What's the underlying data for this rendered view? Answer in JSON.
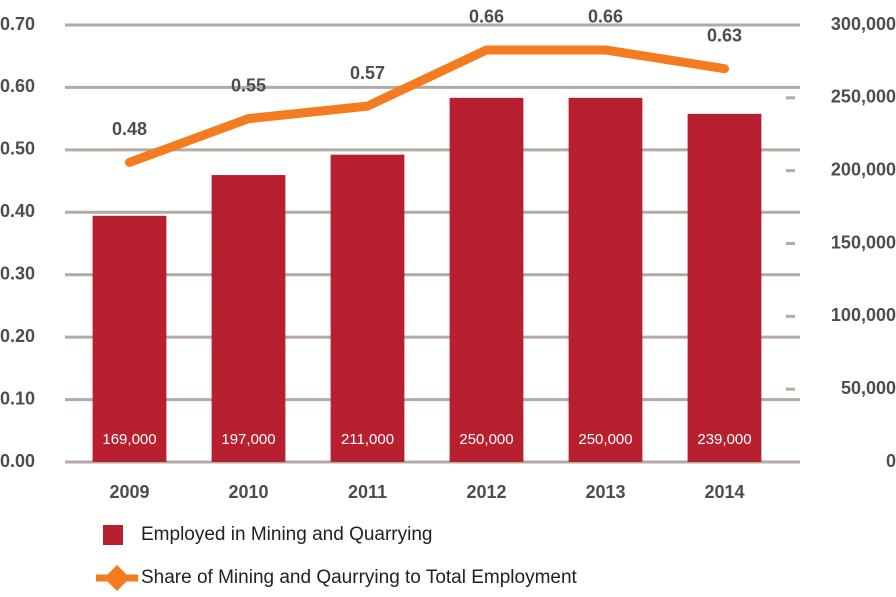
{
  "chart_data": {
    "type": "bar-line",
    "categories": [
      "2009",
      "2010",
      "2011",
      "2012",
      "2013",
      "2014"
    ],
    "series": [
      {
        "name": "Employed in Mining and Quarrying",
        "type": "bar",
        "axis": "y2",
        "color": "#b8202f",
        "values": [
          169000,
          197000,
          211000,
          250000,
          250000,
          239000
        ],
        "value_labels": [
          "169,000",
          "197,000",
          "211,000",
          "250,000",
          "250,000",
          "239,000"
        ]
      },
      {
        "name": "Share of Mining and Qaurrying to Total Employment",
        "type": "line",
        "axis": "y",
        "color": "#f47b20",
        "values": [
          0.48,
          0.55,
          0.57,
          0.66,
          0.66,
          0.63
        ]
      }
    ],
    "ylim": [
      0,
      0.7
    ],
    "yticks": [
      {
        "value": 0,
        "label": "0.00"
      },
      {
        "value": 0.1,
        "label": "0.10"
      },
      {
        "value": 0.2,
        "label": "0.20"
      },
      {
        "value": 0.3,
        "label": "0.30"
      },
      {
        "value": 0.4,
        "label": "0.40"
      },
      {
        "value": 0.5,
        "label": "0.50"
      },
      {
        "value": 0.6,
        "label": "0.60"
      },
      {
        "value": 0.7,
        "label": "0.70"
      }
    ],
    "y2lim": [
      0,
      300000
    ],
    "y2ticks": [
      0,
      {
        "value": 50000,
        "label": "50,000"
      },
      {
        "value": 100000,
        "label": "100,000"
      },
      {
        "value": 150000,
        "label": "150,000"
      },
      {
        "value": 200000,
        "label": "200,000"
      },
      {
        "value": 250000,
        "label": "250,000"
      },
      {
        "value": 300000,
        "label": "300,000"
      }
    ],
    "grid": true
  }
}
